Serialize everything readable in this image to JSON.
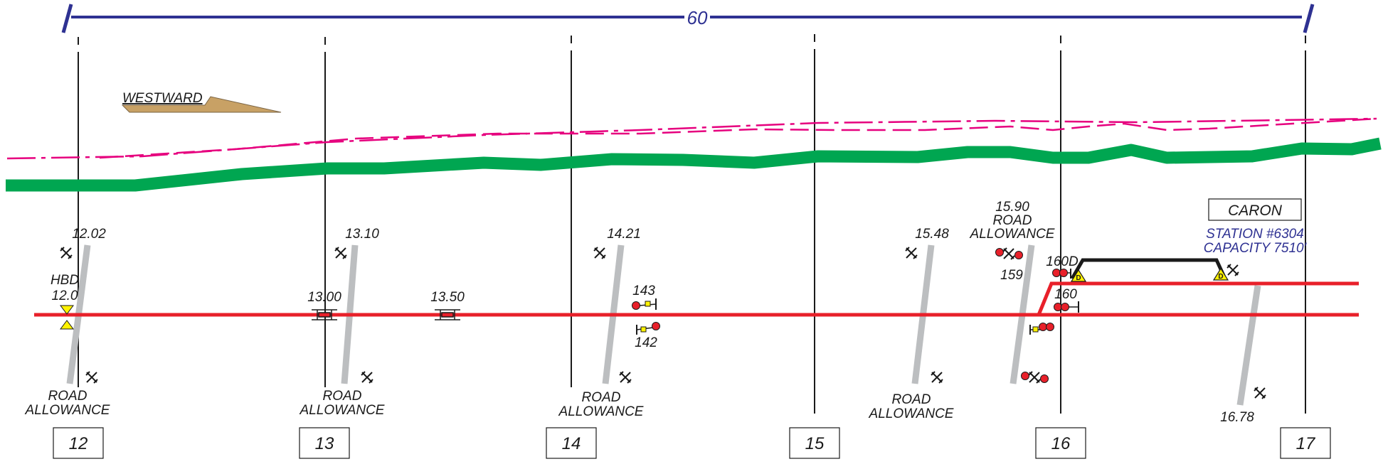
{
  "span": {
    "label": "60"
  },
  "direction": {
    "label": "WESTWARD"
  },
  "station": {
    "name": "CARON",
    "number_line": "STATION #6304",
    "capacity_line": "CAPACITY 7510'"
  },
  "hbd": {
    "line1": "HBD",
    "line2": "12.0"
  },
  "mileposts": [
    "12",
    "13",
    "14",
    "15",
    "16",
    "17"
  ],
  "crossings": {
    "c1202": {
      "mp": "12.02",
      "label_line1": "ROAD",
      "label_line2": "ALLOWANCE"
    },
    "c1310": {
      "mp": "13.10",
      "label_line1": "ROAD",
      "label_line2": "ALLOWANCE"
    },
    "c1421": {
      "mp": "14.21",
      "label_line1": "ROAD",
      "label_line2": "ALLOWANCE"
    },
    "c1548": {
      "mp": "15.48",
      "label_line1": "ROAD",
      "label_line2": "ALLOWANCE"
    },
    "c1590": {
      "mp": "15.90",
      "label_line1": "ROAD",
      "label_line2": "ALLOWANCE"
    },
    "c1678": {
      "mp": "16.78"
    }
  },
  "bridges": {
    "b1300": "13.00",
    "b1350": "13.50"
  },
  "signals": {
    "s143": "143",
    "s142": "142",
    "s159": "159",
    "s160": "160",
    "s160d": "160D"
  },
  "derail": {
    "symbol": "D"
  },
  "colors": {
    "main_track": "#e8202a",
    "siding_track": "#1a1a1a",
    "profile_green": "#00a651",
    "profile_magenta": "#e6007e",
    "span_blue": "#2e3192",
    "road": "#bcbec0",
    "direction_arrow": "#c8a165",
    "signal_red": "#e8202a",
    "hbd_yellow": "#fff200"
  }
}
